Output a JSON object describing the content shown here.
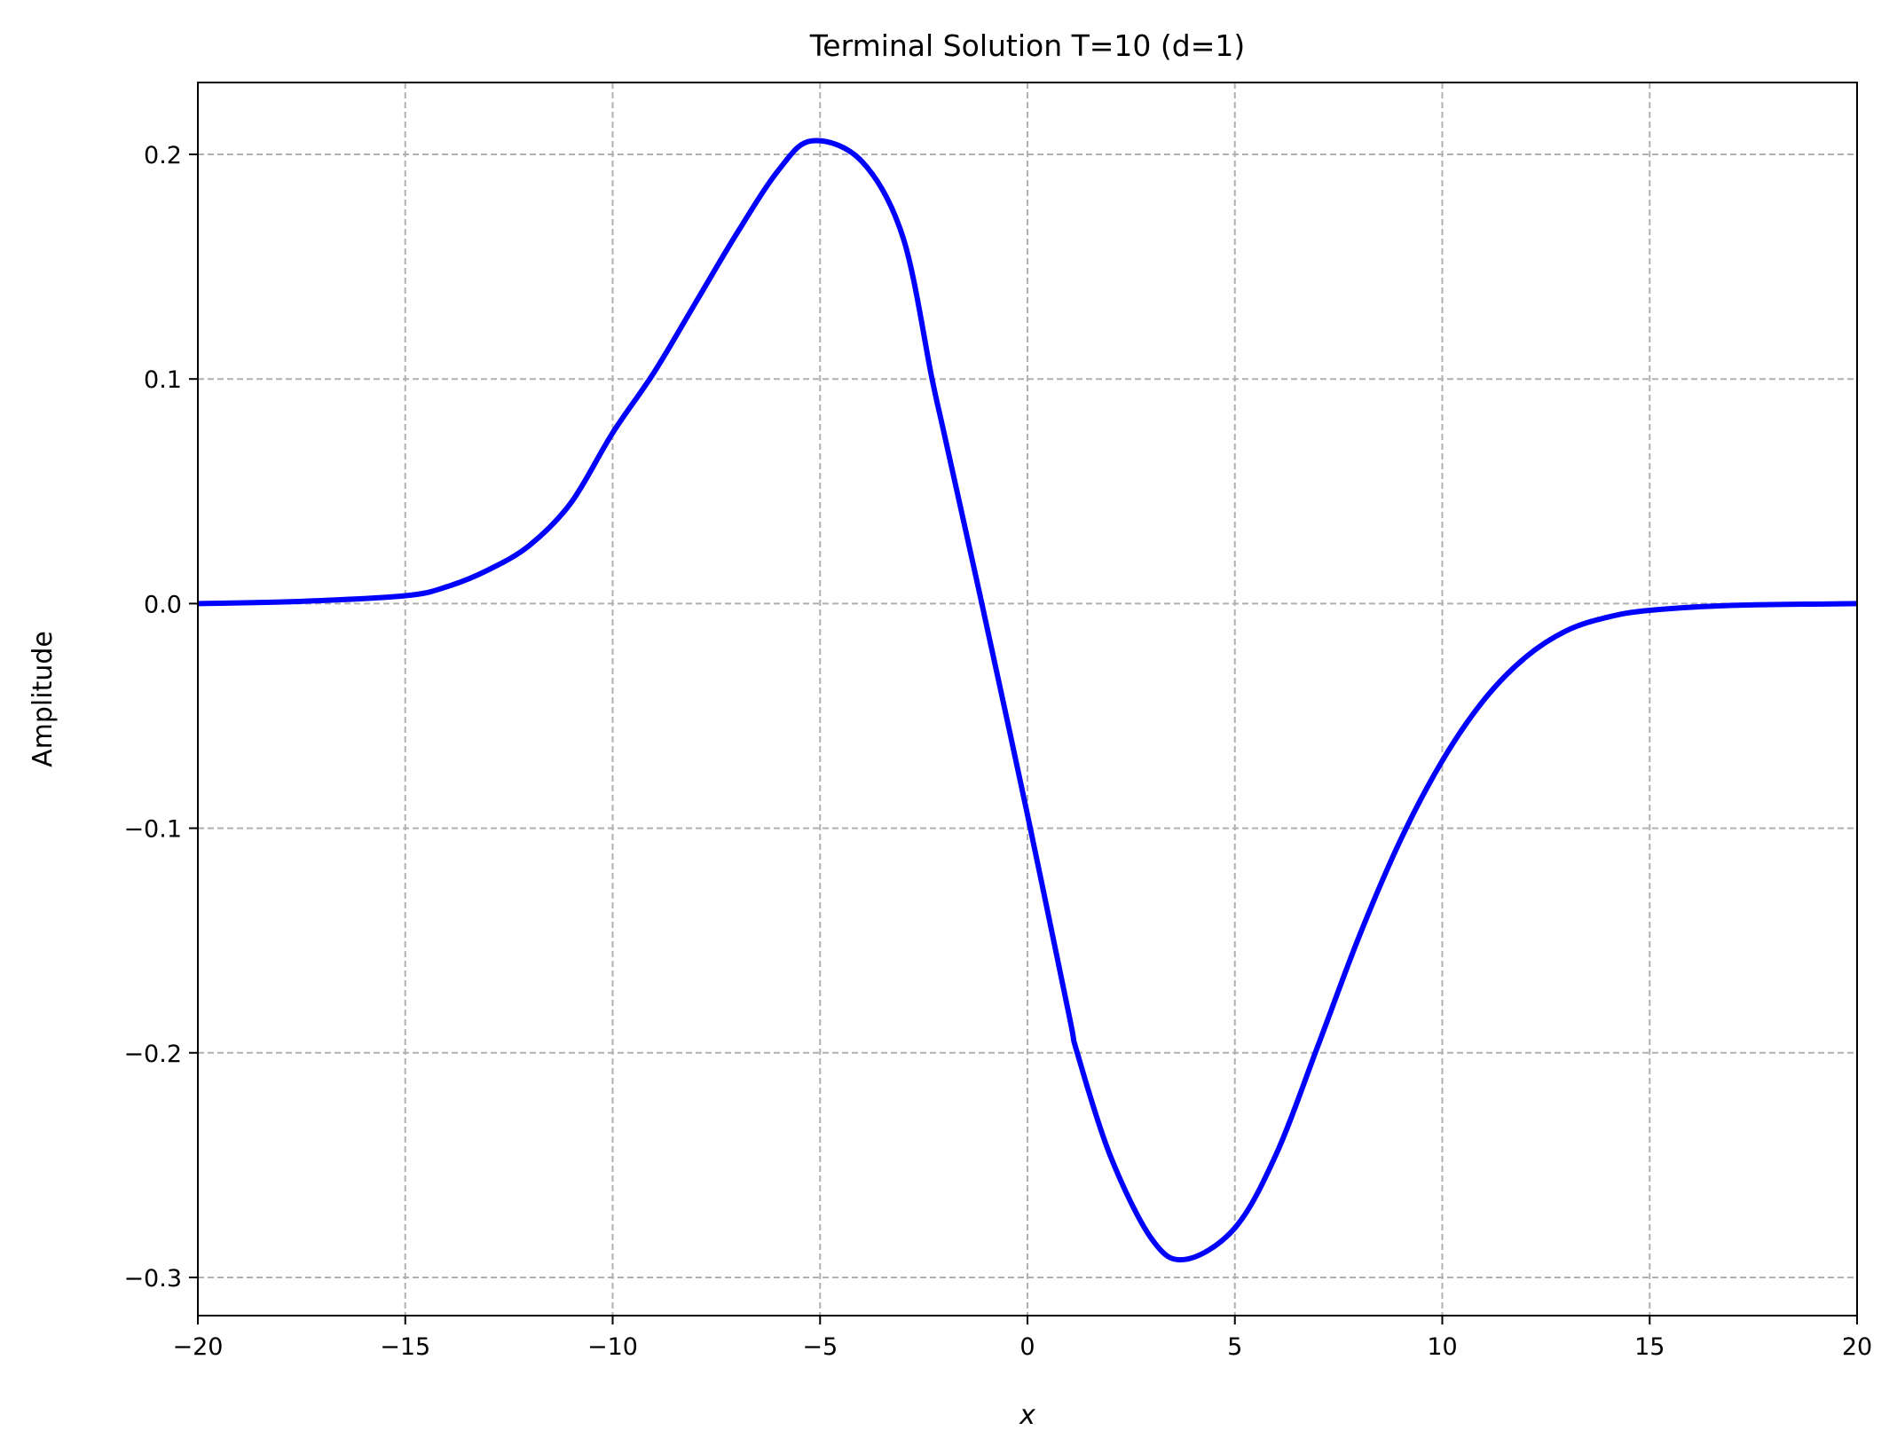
{
  "chart_data": {
    "type": "line",
    "title": "Terminal Solution T=10 (d=1)",
    "xlabel": "x",
    "ylabel": "Amplitude",
    "xlim": [
      -20,
      20
    ],
    "ylim": [
      -0.317,
      0.232
    ],
    "grid": true,
    "xticks": [
      -20,
      -15,
      -10,
      -5,
      0,
      5,
      10,
      15,
      20
    ],
    "xtick_labels": [
      "−20",
      "−15",
      "−10",
      "−5",
      "0",
      "5",
      "10",
      "15",
      "20"
    ],
    "yticks": [
      -0.3,
      -0.2,
      -0.1,
      0.0,
      0.1,
      0.2
    ],
    "ytick_labels": [
      "−0.3",
      "−0.2",
      "−0.1",
      "0.0",
      "0.1",
      "0.2"
    ],
    "series": [
      {
        "color": "#0000ff",
        "x": [
          -20,
          -17.5,
          -15,
          -14,
          -13,
          -12,
          -11,
          -10,
          -9,
          -8,
          -7,
          -6,
          -5.2,
          -4,
          -3,
          -2.3,
          -2,
          -1.1,
          0,
          1,
          1.2,
          2,
          3,
          3.8,
          5,
          6,
          7,
          8,
          9,
          10,
          11,
          12,
          13,
          14,
          15,
          17,
          20
        ],
        "y": [
          0,
          0.001,
          0.0035,
          0.0075,
          0.015,
          0.026,
          0.045,
          0.076,
          0.103,
          0.134,
          0.165,
          0.193,
          0.206,
          0.197,
          0.163,
          0.1,
          0.075,
          0,
          -0.094,
          -0.183,
          -0.2,
          -0.246,
          -0.283,
          -0.292,
          -0.278,
          -0.245,
          -0.197,
          -0.148,
          -0.105,
          -0.07,
          -0.043,
          -0.024,
          -0.012,
          -0.006,
          -0.003,
          -0.0008,
          0
        ]
      }
    ]
  }
}
